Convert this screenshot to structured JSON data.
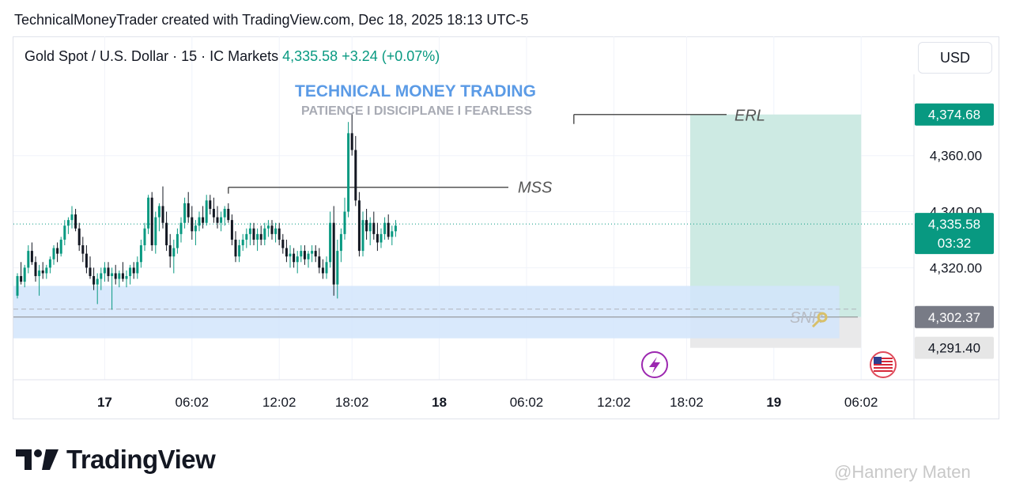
{
  "header": {
    "attribution": "TechnicalMoneyTrader created with TradingView.com, Dec 18, 2025 18:13 UTC-5"
  },
  "legend": {
    "symbol": "Gold Spot / U.S. Dollar · 15 · IC Markets",
    "price": "4,335.58",
    "change": "+3.24 (+0.07%)"
  },
  "currency_button": "USD",
  "branding": {
    "title": "TECHNICAL MONEY TRADING",
    "subtitle": "PATIENCE I DISICIPLANE I FEARLESS"
  },
  "watermark": "@Hannery Maten",
  "logo_text": "TradingView",
  "colors": {
    "up": "#089981",
    "down": "#131722",
    "tp_zone": "#cdeae3",
    "zone": "#d2e5fb",
    "line": "#555555"
  },
  "chart_data": {
    "type": "candlestick",
    "y_range": [
      4280,
      4389
    ],
    "y_ticks": [
      "4,360.00",
      "4,340.00",
      "4,320.00"
    ],
    "y_tick_values": [
      4360,
      4340,
      4320
    ],
    "x_ticks": [
      {
        "label": "17",
        "bold": true,
        "t": 24
      },
      {
        "label": "06:02",
        "bold": false,
        "t": 48
      },
      {
        "label": "12:02",
        "bold": false,
        "t": 72
      },
      {
        "label": "18:02",
        "bold": false,
        "t": 92
      },
      {
        "label": "18",
        "bold": true,
        "t": 116
      },
      {
        "label": "06:02",
        "bold": false,
        "t": 140
      },
      {
        "label": "12:02",
        "bold": false,
        "t": 164
      },
      {
        "label": "18:02",
        "bold": false,
        "t": 184
      },
      {
        "label": "19",
        "bold": true,
        "t": 208
      },
      {
        "label": "06:02",
        "bold": false,
        "t": 232
      }
    ],
    "price_labels": [
      {
        "value": "4,374.68",
        "sub": "",
        "y": 4374.68,
        "style": "green"
      },
      {
        "value": "4,335.58",
        "sub": "03:32",
        "y": 4335.58,
        "style": "green"
      },
      {
        "value": "4,302.37",
        "sub": "",
        "y": 4302.37,
        "style": "gray"
      },
      {
        "value": "4,291.40",
        "sub": "",
        "y": 4291.4,
        "style": "light"
      }
    ],
    "annotations": [
      {
        "text": "MSS",
        "level": 4348.7,
        "t_from": 58,
        "t_to": 135
      },
      {
        "text": "ERL",
        "level": 4374.68,
        "t_from": 153,
        "t_to": 195
      },
      {
        "text": "SNR",
        "level": 4302.37,
        "t_from": 0,
        "t_to": 232
      }
    ],
    "zones": {
      "demand": {
        "top": 4313.5,
        "bottom": 4294.8,
        "t_from": 0,
        "t_to": 226
      },
      "take_profit": {
        "top": 4374.68,
        "bottom": 4302.37,
        "t_from": 185,
        "t_to": 232
      },
      "stop": {
        "top": 4302.37,
        "bottom": 4291.4,
        "t_from": 185,
        "t_to": 232
      }
    },
    "last_price": 4335.58,
    "candles": [
      [
        4310,
        4318,
        4309,
        4317
      ],
      [
        4317,
        4322,
        4314,
        4315
      ],
      [
        4315,
        4321,
        4313,
        4320
      ],
      [
        4320,
        4328,
        4318,
        4326
      ],
      [
        4326,
        4329,
        4321,
        4322
      ],
      [
        4322,
        4324,
        4315,
        4317
      ],
      [
        4317,
        4321,
        4310,
        4319
      ],
      [
        4319,
        4322,
        4316,
        4318
      ],
      [
        4318,
        4321,
        4316,
        4320
      ],
      [
        4320,
        4324,
        4318,
        4323
      ],
      [
        4323,
        4328,
        4321,
        4327
      ],
      [
        4327,
        4329,
        4322,
        4325
      ],
      [
        4325,
        4331,
        4324,
        4330
      ],
      [
        4330,
        4337,
        4328,
        4335
      ],
      [
        4335,
        4338,
        4332,
        4337
      ],
      [
        4337,
        4342,
        4334,
        4339
      ],
      [
        4339,
        4341,
        4333,
        4334
      ],
      [
        4334,
        4336,
        4326,
        4328
      ],
      [
        4328,
        4331,
        4322,
        4325
      ],
      [
        4325,
        4328,
        4318,
        4320
      ],
      [
        4320,
        4324,
        4316,
        4317
      ],
      [
        4317,
        4320,
        4312,
        4314
      ],
      [
        4314,
        4318,
        4307,
        4316
      ],
      [
        4316,
        4320,
        4312,
        4318
      ],
      [
        4318,
        4322,
        4315,
        4320
      ],
      [
        4320,
        4322,
        4315,
        4317
      ],
      [
        4317,
        4320,
        4305,
        4318
      ],
      [
        4318,
        4321,
        4314,
        4316
      ],
      [
        4316,
        4319,
        4313,
        4318
      ],
      [
        4318,
        4322,
        4315,
        4316
      ],
      [
        4316,
        4319,
        4313,
        4317
      ],
      [
        4317,
        4321,
        4314,
        4320
      ],
      [
        4320,
        4322,
        4316,
        4318
      ],
      [
        4318,
        4324,
        4316,
        4322
      ],
      [
        4322,
        4330,
        4320,
        4328
      ],
      [
        4328,
        4336,
        4326,
        4334
      ],
      [
        4334,
        4346,
        4332,
        4345
      ],
      [
        4345,
        4347,
        4326,
        4328
      ],
      [
        4328,
        4340,
        4325,
        4338
      ],
      [
        4338,
        4343,
        4333,
        4342
      ],
      [
        4342,
        4349,
        4334,
        4336
      ],
      [
        4336,
        4340,
        4326,
        4328
      ],
      [
        4328,
        4332,
        4320,
        4324
      ],
      [
        4324,
        4330,
        4318,
        4327
      ],
      [
        4327,
        4334,
        4325,
        4332
      ],
      [
        4332,
        4338,
        4329,
        4336
      ],
      [
        4336,
        4345,
        4334,
        4343
      ],
      [
        4343,
        4347,
        4336,
        4338
      ],
      [
        4338,
        4342,
        4330,
        4333
      ],
      [
        4333,
        4337,
        4328,
        4335
      ],
      [
        4335,
        4340,
        4333,
        4338
      ],
      [
        4338,
        4342,
        4334,
        4336
      ],
      [
        4336,
        4346,
        4335,
        4344
      ],
      [
        4344,
        4346,
        4339,
        4341
      ],
      [
        4341,
        4345,
        4336,
        4338
      ],
      [
        4338,
        4342,
        4334,
        4336
      ],
      [
        4336,
        4340,
        4333,
        4338
      ],
      [
        4338,
        4342,
        4335,
        4341
      ],
      [
        4341,
        4343,
        4336,
        4337
      ],
      [
        4337,
        4339,
        4328,
        4330
      ],
      [
        4330,
        4333,
        4322,
        4324
      ],
      [
        4324,
        4330,
        4322,
        4328
      ],
      [
        4328,
        4332,
        4326,
        4330
      ],
      [
        4330,
        4334,
        4327,
        4332
      ],
      [
        4332,
        4336,
        4328,
        4334
      ],
      [
        4334,
        4336,
        4328,
        4330
      ],
      [
        4330,
        4334,
        4326,
        4332
      ],
      [
        4332,
        4335,
        4328,
        4330
      ],
      [
        4330,
        4336,
        4328,
        4334
      ],
      [
        4334,
        4337,
        4331,
        4335
      ],
      [
        4335,
        4337,
        4330,
        4332
      ],
      [
        4332,
        4336,
        4329,
        4334
      ],
      [
        4334,
        4336,
        4328,
        4330
      ],
      [
        4330,
        4332,
        4325,
        4327
      ],
      [
        4327,
        4330,
        4322,
        4324
      ],
      [
        4324,
        4328,
        4320,
        4325
      ],
      [
        4325,
        4327,
        4320,
        4322
      ],
      [
        4322,
        4326,
        4318,
        4324
      ],
      [
        4324,
        4328,
        4322,
        4326
      ],
      [
        4326,
        4328,
        4321,
        4323
      ],
      [
        4323,
        4326,
        4320,
        4325
      ],
      [
        4325,
        4328,
        4322,
        4326
      ],
      [
        4326,
        4328,
        4322,
        4324
      ],
      [
        4324,
        4327,
        4318,
        4320
      ],
      [
        4320,
        4323,
        4316,
        4318
      ],
      [
        4318,
        4324,
        4316,
        4322
      ],
      [
        4322,
        4340,
        4320,
        4336
      ],
      [
        4336,
        4342,
        4310,
        4314
      ],
      [
        4314,
        4330,
        4309,
        4326
      ],
      [
        4326,
        4334,
        4322,
        4332
      ],
      [
        4332,
        4345,
        4330,
        4340
      ],
      [
        4340,
        4372,
        4338,
        4368
      ],
      [
        4368,
        4375,
        4360,
        4362
      ],
      [
        4362,
        4367,
        4342,
        4344
      ],
      [
        4344,
        4347,
        4324,
        4326
      ],
      [
        4326,
        4340,
        4324,
        4337
      ],
      [
        4337,
        4341,
        4330,
        4333
      ],
      [
        4333,
        4338,
        4328,
        4336
      ],
      [
        4336,
        4340,
        4330,
        4332
      ],
      [
        4332,
        4336,
        4326,
        4329
      ],
      [
        4329,
        4334,
        4327,
        4332
      ],
      [
        4332,
        4338,
        4330,
        4336
      ],
      [
        4336,
        4339,
        4330,
        4331
      ],
      [
        4331,
        4335,
        4328,
        4333
      ],
      [
        4333,
        4337,
        4331,
        4335
      ]
    ]
  }
}
